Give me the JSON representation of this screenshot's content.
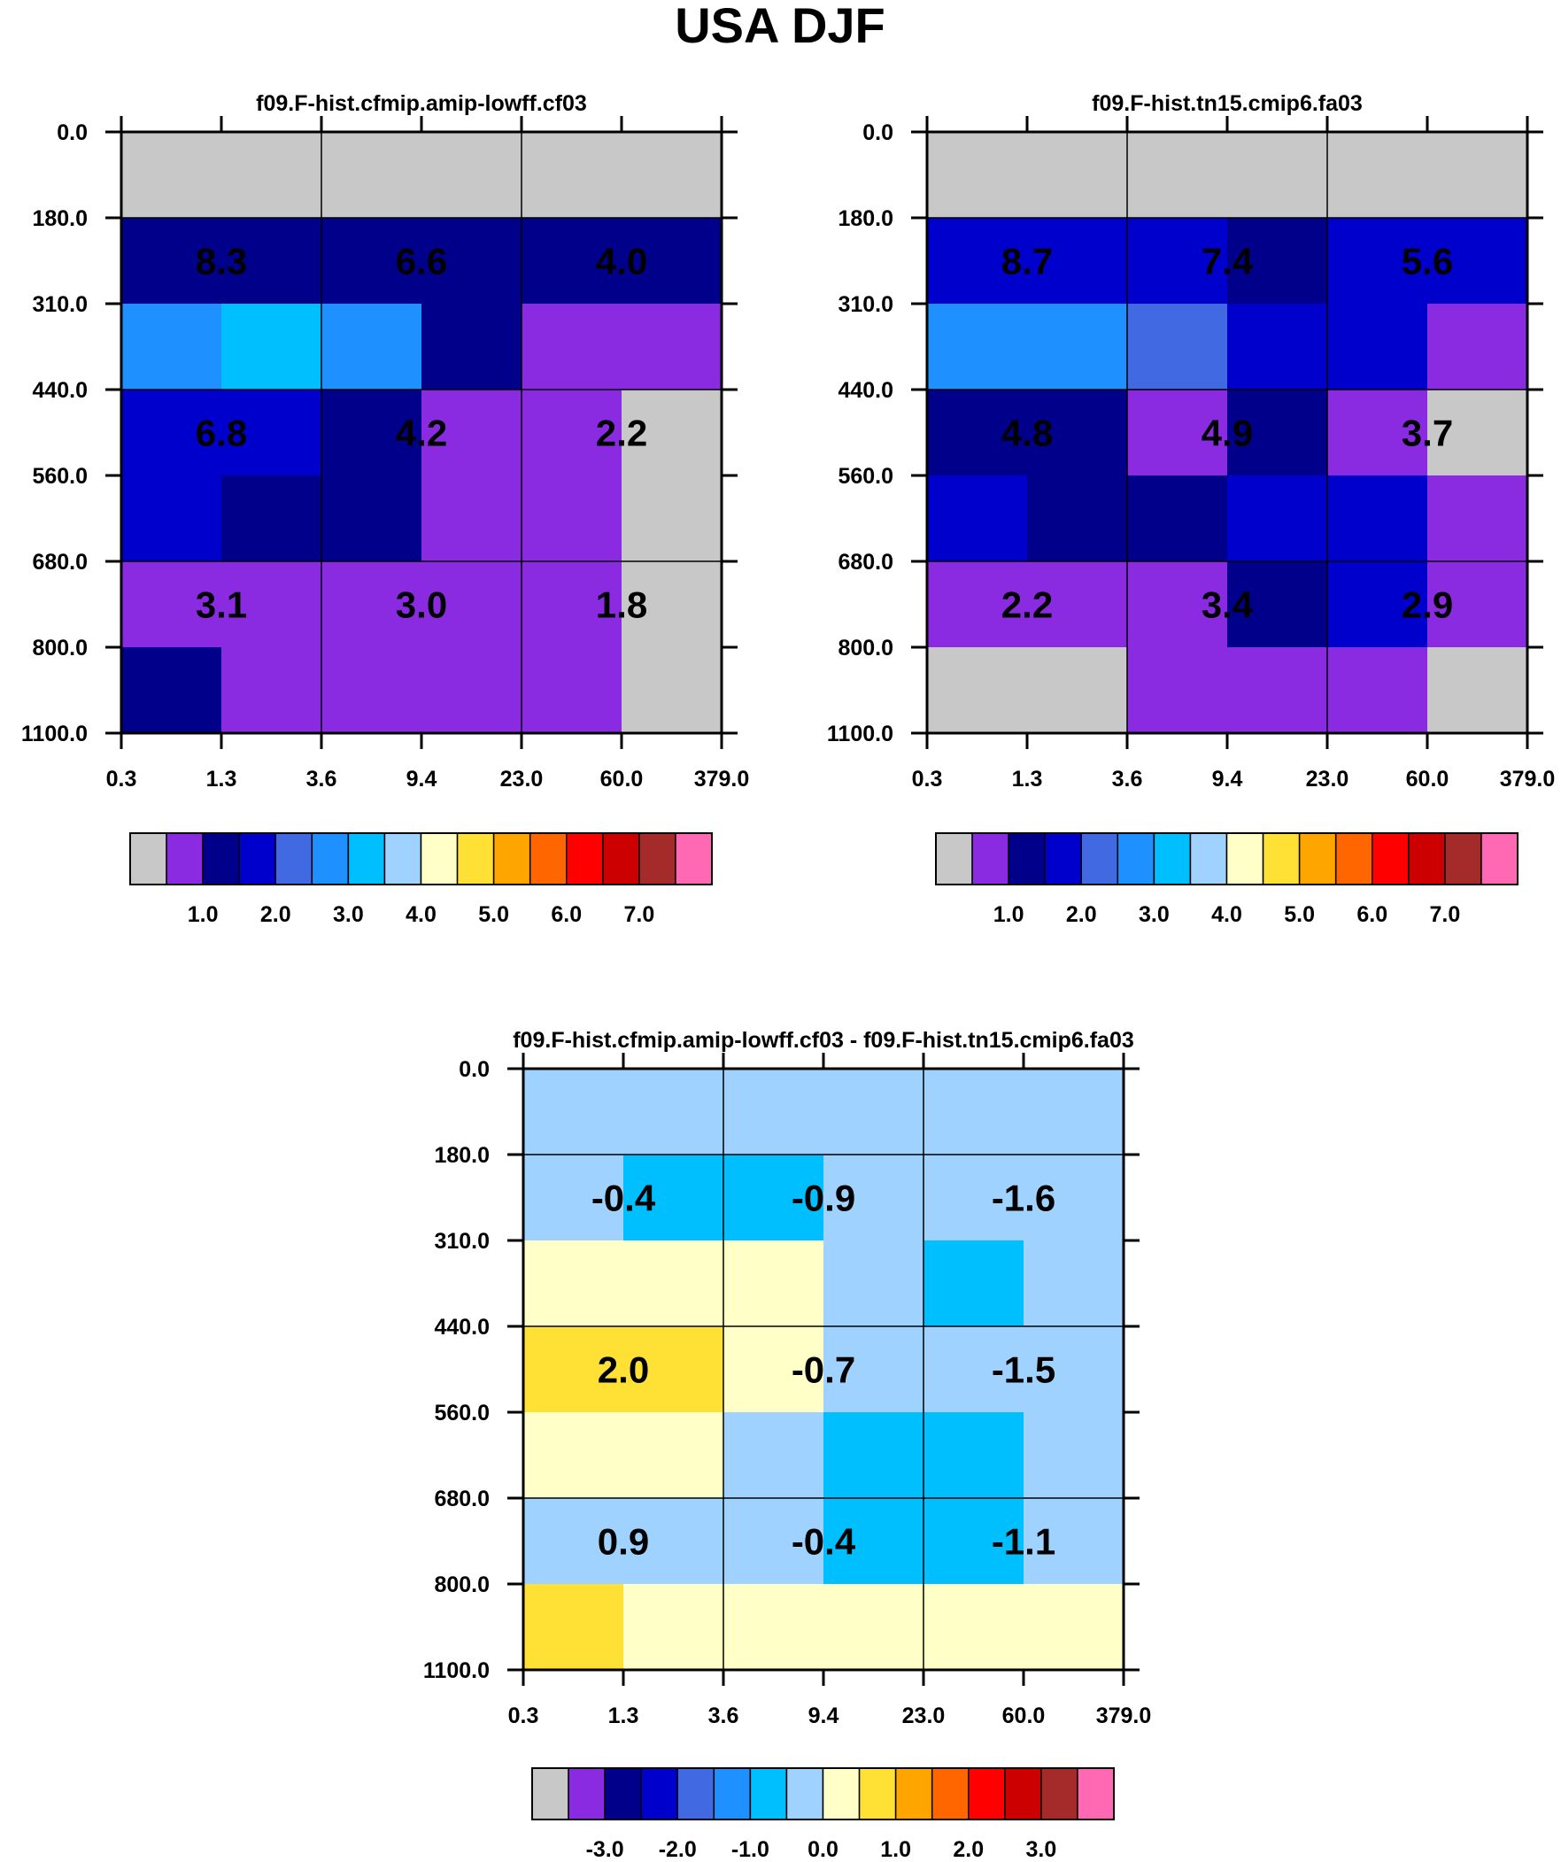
{
  "figure": {
    "title": "USA DJF"
  },
  "colormap": [
    "#c8c8c8",
    "#8a2be2",
    "#00008b",
    "#0000cd",
    "#4169e1",
    "#1e90ff",
    "#00bfff",
    "#a0d2ff",
    "#ffffc8",
    "#ffe135",
    "#ffa500",
    "#ff6600",
    "#ff0000",
    "#cc0000",
    "#a52a2a",
    "#ff69b4"
  ],
  "chart_data": [
    {
      "type": "heatmap",
      "title": "f09.F-hist.cfmip.amip-lowff.cf03",
      "x_ticks": [
        "0.3",
        "1.3",
        "3.6",
        "9.4",
        "23.0",
        "60.0",
        "379.0"
      ],
      "y_ticks": [
        "0.0",
        "180.0",
        "310.0",
        "440.0",
        "560.0",
        "680.0",
        "800.0",
        "1100.0"
      ],
      "cells": [
        [
          0,
          0,
          0,
          0,
          0,
          0
        ],
        [
          2,
          2,
          2,
          2,
          2,
          2
        ],
        [
          5,
          6,
          5,
          2,
          1,
          1
        ],
        [
          3,
          3,
          2,
          1,
          1,
          0
        ],
        [
          3,
          2,
          2,
          1,
          1,
          0
        ],
        [
          1,
          1,
          1,
          1,
          1,
          0
        ],
        [
          2,
          1,
          1,
          1,
          1,
          0
        ]
      ],
      "labels": [
        {
          "col": 0,
          "row": 0,
          "text": "8.3"
        },
        {
          "col": 1,
          "row": 0,
          "text": "6.6"
        },
        {
          "col": 2,
          "row": 0,
          "text": "4.0"
        },
        {
          "col": 0,
          "row": 1,
          "text": "6.8"
        },
        {
          "col": 1,
          "row": 1,
          "text": "4.2"
        },
        {
          "col": 2,
          "row": 1,
          "text": "2.2"
        },
        {
          "col": 0,
          "row": 2,
          "text": "3.1"
        },
        {
          "col": 1,
          "row": 2,
          "text": "3.0"
        },
        {
          "col": 2,
          "row": 2,
          "text": "1.8"
        }
      ],
      "colorbar": {
        "tick_labels": [
          "1.0",
          "2.0",
          "3.0",
          "4.0",
          "5.0",
          "6.0",
          "7.0"
        ]
      }
    },
    {
      "type": "heatmap",
      "title": "f09.F-hist.tn15.cmip6.fa03",
      "x_ticks": [
        "0.3",
        "1.3",
        "3.6",
        "9.4",
        "23.0",
        "60.0",
        "379.0"
      ],
      "y_ticks": [
        "0.0",
        "180.0",
        "310.0",
        "440.0",
        "560.0",
        "680.0",
        "800.0",
        "1100.0"
      ],
      "cells": [
        [
          0,
          0,
          0,
          0,
          0,
          0
        ],
        [
          3,
          3,
          3,
          2,
          3,
          3
        ],
        [
          5,
          5,
          4,
          3,
          3,
          1
        ],
        [
          2,
          2,
          1,
          2,
          1,
          0
        ],
        [
          3,
          2,
          2,
          3,
          3,
          1
        ],
        [
          1,
          1,
          1,
          2,
          3,
          1
        ],
        [
          0,
          0,
          1,
          1,
          1,
          0
        ]
      ],
      "labels": [
        {
          "col": 0,
          "row": 0,
          "text": "8.7"
        },
        {
          "col": 1,
          "row": 0,
          "text": "7.4"
        },
        {
          "col": 2,
          "row": 0,
          "text": "5.6"
        },
        {
          "col": 0,
          "row": 1,
          "text": "4.8"
        },
        {
          "col": 1,
          "row": 1,
          "text": "4.9"
        },
        {
          "col": 2,
          "row": 1,
          "text": "3.7"
        },
        {
          "col": 0,
          "row": 2,
          "text": "2.2"
        },
        {
          "col": 1,
          "row": 2,
          "text": "3.4"
        },
        {
          "col": 2,
          "row": 2,
          "text": "2.9"
        }
      ],
      "colorbar": {
        "tick_labels": [
          "1.0",
          "2.0",
          "3.0",
          "4.0",
          "5.0",
          "6.0",
          "7.0"
        ]
      }
    },
    {
      "type": "heatmap",
      "title": "f09.F-hist.cfmip.amip-lowff.cf03 - f09.F-hist.tn15.cmip6.fa03",
      "x_ticks": [
        "0.3",
        "1.3",
        "3.6",
        "9.4",
        "23.0",
        "60.0",
        "379.0"
      ],
      "y_ticks": [
        "0.0",
        "180.0",
        "310.0",
        "440.0",
        "560.0",
        "680.0",
        "800.0",
        "1100.0"
      ],
      "cells": [
        [
          7,
          7,
          7,
          7,
          7,
          7
        ],
        [
          7,
          6,
          6,
          7,
          7,
          7
        ],
        [
          8,
          8,
          8,
          7,
          6,
          7
        ],
        [
          9,
          9,
          8,
          7,
          7,
          7
        ],
        [
          8,
          8,
          7,
          6,
          6,
          7
        ],
        [
          7,
          7,
          7,
          6,
          6,
          7
        ],
        [
          9,
          8,
          8,
          8,
          8,
          8
        ]
      ],
      "labels": [
        {
          "col": 0,
          "row": 0,
          "text": "-0.4"
        },
        {
          "col": 1,
          "row": 0,
          "text": "-0.9"
        },
        {
          "col": 2,
          "row": 0,
          "text": "-1.6"
        },
        {
          "col": 0,
          "row": 1,
          "text": "2.0"
        },
        {
          "col": 1,
          "row": 1,
          "text": "-0.7"
        },
        {
          "col": 2,
          "row": 1,
          "text": "-1.5"
        },
        {
          "col": 0,
          "row": 2,
          "text": "0.9"
        },
        {
          "col": 1,
          "row": 2,
          "text": "-0.4"
        },
        {
          "col": 2,
          "row": 2,
          "text": "-1.1"
        }
      ],
      "colorbar": {
        "tick_labels": [
          "-3.0",
          "-2.0",
          "-1.0",
          "0.0",
          "1.0",
          "2.0",
          "3.0"
        ]
      }
    }
  ]
}
